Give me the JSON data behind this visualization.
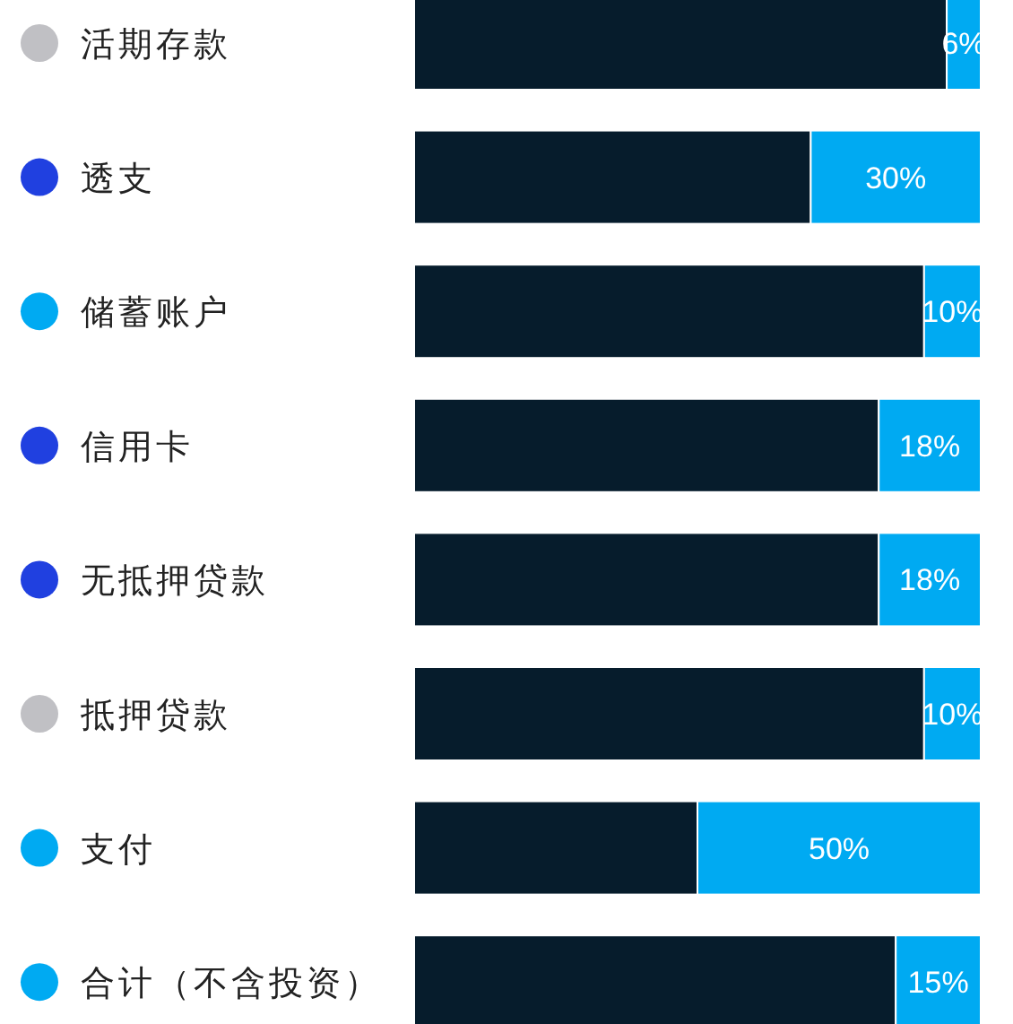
{
  "chart_data": {
    "type": "bar",
    "orientation": "horizontal",
    "stacked": true,
    "categories": [
      "活期存款",
      "透支",
      "储蓄账户",
      "信用卡",
      "无抵押贷款",
      "抵押贷款",
      "支付",
      "合计（不含投资）"
    ],
    "series": [
      {
        "color": "#061c2c",
        "values": [
          94,
          70,
          90,
          82,
          82,
          90,
          50,
          85
        ]
      },
      {
        "color": "#00aaf2",
        "values": [
          6,
          30,
          10,
          18,
          18,
          10,
          50,
          15
        ],
        "value_labels": [
          "6%",
          "30%",
          "10%",
          "18%",
          "18%",
          "10%",
          "50%",
          "15%"
        ]
      }
    ]
  }
}
